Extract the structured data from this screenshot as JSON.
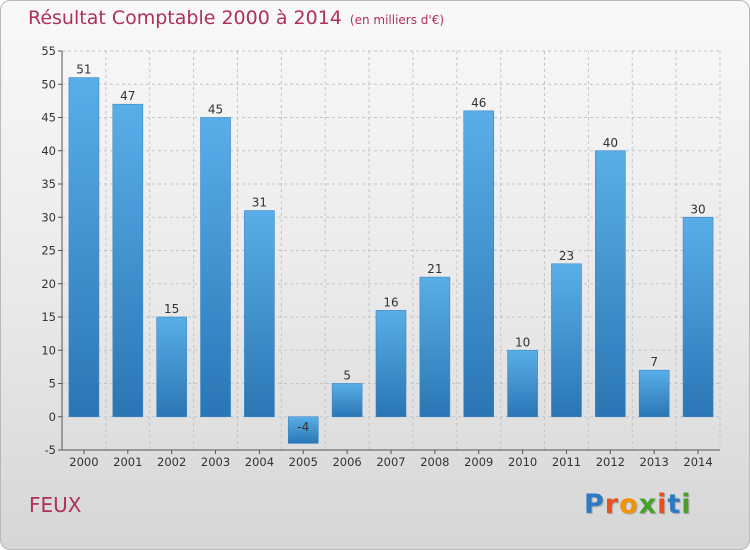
{
  "title": "Résultat Comptable 2000 à 2014",
  "unit": "(en milliers d'€)",
  "commune": "FEUX",
  "brand": {
    "letters": [
      "P",
      "r",
      "o",
      "x",
      "i",
      "t",
      "i"
    ],
    "colors": [
      "#2e7bc4",
      "#e8501c",
      "#f39200",
      "#4aa02c",
      "#e8501c",
      "#2e7bc4",
      "#4aa02c"
    ]
  },
  "colors": {
    "bar_top": "#5aaee8",
    "bar_bottom": "#2a76b4",
    "title": "#b0305a",
    "grid": "#c4c4c4"
  },
  "chart_data": {
    "type": "bar",
    "categories": [
      "2000",
      "2001",
      "2002",
      "2003",
      "2004",
      "2005",
      "2006",
      "2007",
      "2008",
      "2009",
      "2010",
      "2011",
      "2012",
      "2013",
      "2014"
    ],
    "values": [
      51,
      47,
      15,
      45,
      31,
      -4,
      5,
      16,
      21,
      46,
      10,
      23,
      40,
      7,
      30
    ],
    "ylim": [
      -5,
      55
    ],
    "yticks": [
      -5,
      0,
      5,
      10,
      15,
      20,
      25,
      30,
      35,
      40,
      45,
      50,
      55
    ],
    "grid": true,
    "title": "Résultat Comptable 2000 à 2014",
    "xlabel": "",
    "ylabel": ""
  }
}
